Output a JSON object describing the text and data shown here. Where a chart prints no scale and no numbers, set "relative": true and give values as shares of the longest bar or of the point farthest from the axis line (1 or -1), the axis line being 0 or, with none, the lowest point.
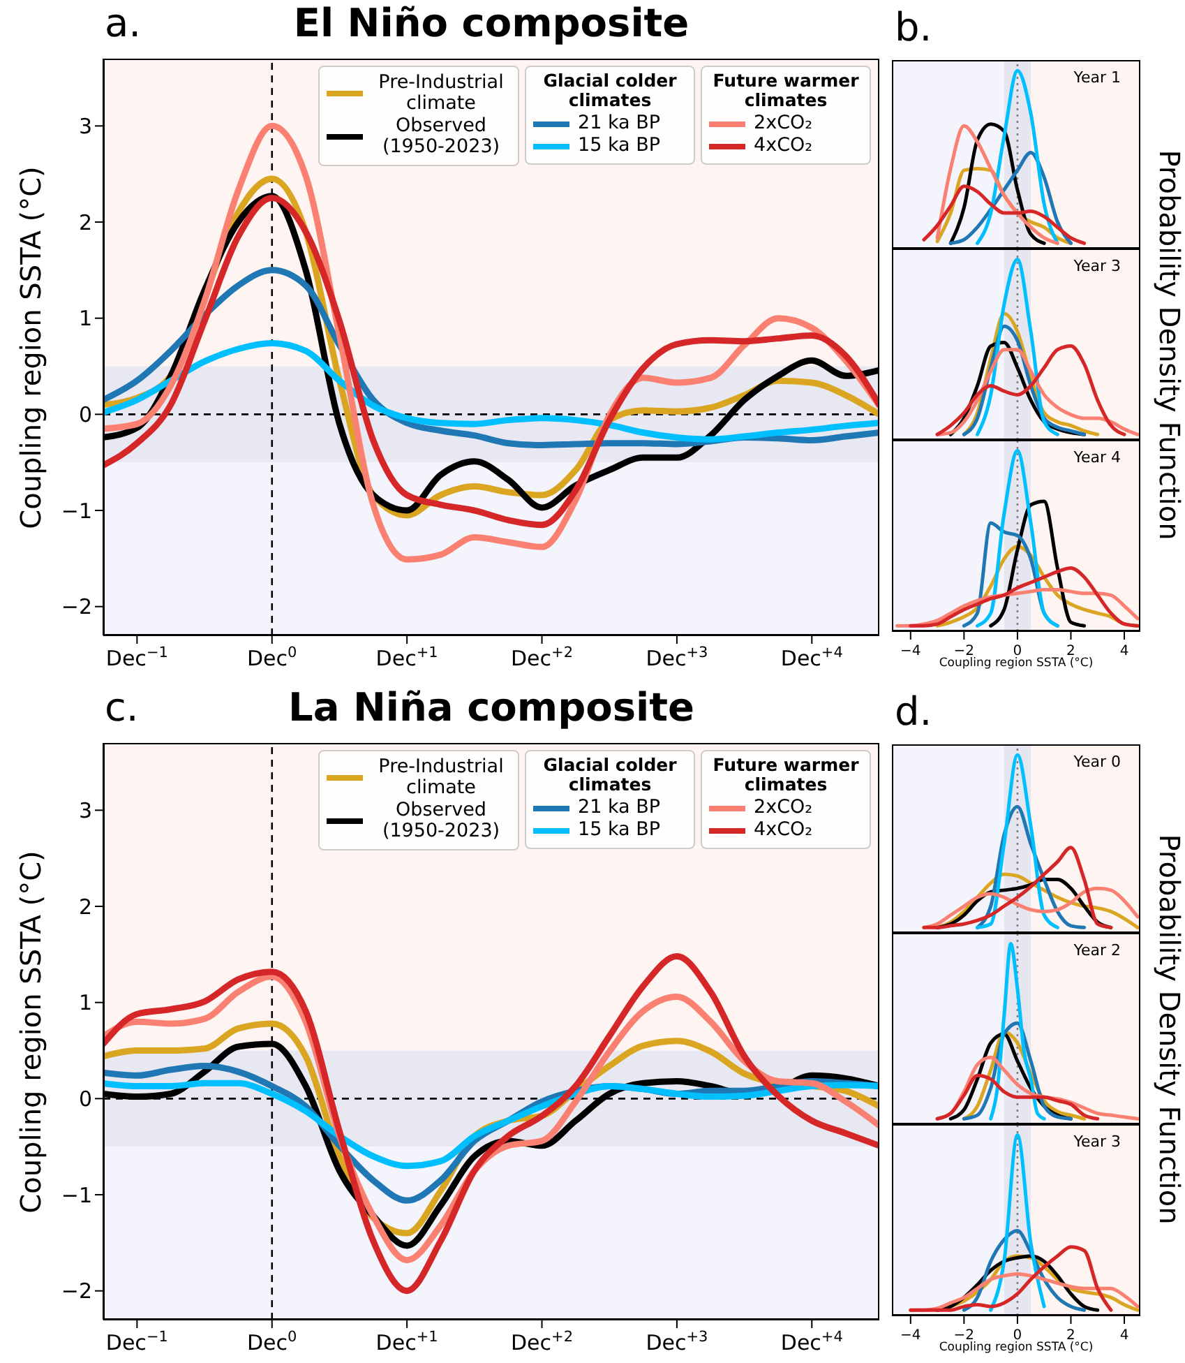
{
  "chart_data": [
    {
      "type": "line",
      "title": "El Niño composite",
      "annotations": [
        "a.",
        "Glacial colder climates",
        "Future warmer climates"
      ],
      "ylabel": "Coupling region SSTA (°C)",
      "legend": "top right",
      "categories": [
        null,
        "Dec$^{−1}$",
        null,
        null,
        null,
        "Dec$^{0}$",
        null,
        null,
        null,
        "Dec$^{+1}$",
        null,
        null,
        null,
        "Dec$^{+2}$",
        null,
        null,
        null,
        "Dec$^{+3}$",
        null,
        null,
        null,
        "Dec$^{+4}$",
        null,
        null
      ],
      "ylim": [
        -2.3,
        3.7
      ],
      "yticks": [
        -2,
        -1,
        0,
        1,
        2,
        3
      ],
      "bands": [
        {
          "axis": "y",
          "from": 0.5,
          "to": 3.7,
          "color": "#fef4f2"
        },
        {
          "axis": "y",
          "from": -0.5,
          "to": 0.5,
          "color": "#e8e8f2"
        },
        {
          "axis": "y",
          "from": -2.3,
          "to": -0.5,
          "color": "#f4f4fd"
        }
      ],
      "ref_lines": [
        {
          "axis": "y",
          "value": 0,
          "line_style": "dashed",
          "color": "#000000"
        },
        {
          "axis": "x",
          "value": "Dec$^{0}$",
          "line_style": "dashed",
          "color": "#000000"
        }
      ],
      "series": [
        {
          "name": "Pre-Industrial climate",
          "color": "#daa520",
          "values": [
            0.1,
            0.17,
            0.4,
            1.23,
            2.1,
            2.45,
            1.9,
            0.35,
            -0.84,
            -1.05,
            -0.84,
            -0.75,
            -0.81,
            -0.84,
            -0.58,
            -0.06,
            0.04,
            0.03,
            0.07,
            0.2,
            0.35,
            0.33,
            0.2,
            0.0
          ]
        },
        {
          "name": "Observed (1950-2023)",
          "color": "#000000",
          "values": [
            -0.24,
            -0.14,
            0.4,
            1.29,
            2.0,
            2.27,
            1.5,
            -0.1,
            -0.84,
            -1.0,
            -0.63,
            -0.49,
            -0.68,
            -0.97,
            -0.74,
            -0.58,
            -0.45,
            -0.45,
            -0.22,
            0.15,
            0.4,
            0.56,
            0.4,
            0.46
          ]
        },
        {
          "name": "21 ka BP",
          "color": "#1f77b4",
          "values": [
            0.15,
            0.35,
            0.66,
            1.03,
            1.34,
            1.5,
            1.34,
            0.72,
            0.15,
            -0.09,
            -0.17,
            -0.22,
            -0.3,
            -0.32,
            -0.31,
            -0.3,
            -0.3,
            -0.31,
            -0.28,
            -0.24,
            -0.25,
            -0.27,
            -0.23,
            -0.19
          ]
        },
        {
          "name": "15 ka BP",
          "color": "#00bfff",
          "values": [
            0.02,
            0.15,
            0.35,
            0.55,
            0.68,
            0.74,
            0.66,
            0.35,
            0.09,
            -0.04,
            -0.09,
            -0.1,
            -0.06,
            -0.04,
            -0.06,
            -0.11,
            -0.19,
            -0.24,
            -0.26,
            -0.23,
            -0.19,
            -0.16,
            -0.12,
            -0.09
          ]
        },
        {
          "name": "2xCO₂",
          "color": "#fa8072",
          "values": [
            -0.15,
            -0.1,
            0.3,
            1.18,
            2.33,
            3.0,
            2.48,
            0.82,
            -0.94,
            -1.51,
            -1.46,
            -1.28,
            -1.33,
            -1.38,
            -0.89,
            -0.01,
            0.38,
            0.33,
            0.38,
            0.72,
            1.0,
            0.9,
            0.56,
            0.09
          ]
        },
        {
          "name": "4xCO₂",
          "color": "#d62728",
          "values": [
            -0.53,
            -0.3,
            0.1,
            0.97,
            1.85,
            2.25,
            1.9,
            0.97,
            -0.27,
            -0.84,
            -0.94,
            -1.0,
            -1.1,
            -1.15,
            -0.79,
            -0.06,
            0.48,
            0.73,
            0.77,
            0.76,
            0.79,
            0.82,
            0.61,
            0.1
          ]
        }
      ]
    },
    {
      "type": "line",
      "title": "b.",
      "annotations": [
        "Year 1"
      ],
      "relative": true,
      "tick_labels": false,
      "x": [
        -3.5,
        -3,
        -2.5,
        -2,
        -1.5,
        -1,
        -0.5,
        0,
        0.5,
        1,
        1.5,
        2,
        2.5
      ],
      "xlim": [
        -4.7,
        4.6
      ],
      "bands": [
        {
          "axis": "x",
          "from": -4.7,
          "to": -0.5,
          "color": "#f4f4fd"
        },
        {
          "axis": "x",
          "from": -0.5,
          "to": 0.5,
          "color": "#e6e6f0"
        },
        {
          "axis": "x",
          "from": 0.5,
          "to": 4.6,
          "color": "#fef4f2"
        }
      ],
      "ref_lines": [
        {
          "axis": "x",
          "value": 0,
          "line_style": "dotted",
          "color": "#808080"
        }
      ],
      "series": [
        {
          "color": "#daa520",
          "values": [
            null,
            0.04,
            0.2,
            0.44,
            0.45,
            0.44,
            0.3,
            0.2,
            0.15,
            0.12,
            0.06,
            0.03,
            null
          ]
        },
        {
          "color": "#000000",
          "values": [
            null,
            null,
            0.03,
            0.23,
            0.61,
            0.7,
            0.66,
            0.33,
            0.08,
            0.03,
            null,
            null,
            null
          ]
        },
        {
          "color": "#1f77b4",
          "values": [
            null,
            null,
            0.03,
            0.05,
            0.12,
            0.22,
            0.33,
            0.44,
            0.54,
            0.4,
            0.15,
            0.03,
            null
          ]
        },
        {
          "color": "#00bfff",
          "values": [
            null,
            null,
            null,
            null,
            0.03,
            0.2,
            0.63,
            1,
            0.76,
            0.25,
            0.03,
            null,
            null
          ]
        },
        {
          "color": "#fa8072",
          "values": [
            null,
            0.06,
            0.45,
            0.69,
            0.6,
            0.45,
            0.3,
            0.2,
            0.12,
            0.06,
            0.03,
            null,
            null
          ]
        },
        {
          "color": "#d62728",
          "values": [
            0.05,
            0.13,
            0.24,
            0.35,
            0.32,
            0.25,
            0.2,
            0.2,
            0.21,
            0.18,
            0.12,
            0.06,
            0.03
          ]
        }
      ]
    },
    {
      "type": "line",
      "annotations": [
        "Year 3"
      ],
      "ylabel": "Probability Density Function",
      "relative": true,
      "tick_labels": false,
      "x": [
        -3,
        -2.5,
        -2,
        -1.5,
        -1,
        -0.5,
        0,
        0.5,
        1,
        1.5,
        2,
        2.5,
        3,
        3.5,
        4,
        4.5
      ],
      "xlim": [
        -4.7,
        4.6
      ],
      "bands": [
        {
          "axis": "x",
          "from": -4.7,
          "to": -0.5,
          "color": "#f4f4fd"
        },
        {
          "axis": "x",
          "from": -0.5,
          "to": 0.5,
          "color": "#e6e6f0"
        },
        {
          "axis": "x",
          "from": 0.5,
          "to": 4.6,
          "color": "#fef4f2"
        }
      ],
      "ref_lines": [
        {
          "axis": "x",
          "value": 0,
          "line_style": "dotted",
          "color": "#808080"
        }
      ],
      "series": [
        {
          "color": "#daa520",
          "values": [
            null,
            null,
            0.03,
            0.15,
            0.45,
            0.7,
            0.6,
            0.35,
            0.15,
            0.1,
            0.08,
            0.05,
            0.03,
            null,
            null,
            null
          ]
        },
        {
          "color": "#000000",
          "values": [
            null,
            0.03,
            0.12,
            0.3,
            0.52,
            0.54,
            0.4,
            0.22,
            0.1,
            0.06,
            0.04,
            0.03,
            null,
            null,
            null,
            null
          ]
        },
        {
          "color": "#1f77b4",
          "values": [
            null,
            null,
            0.03,
            0.12,
            0.4,
            0.63,
            0.55,
            0.3,
            0.12,
            0.07,
            0.05,
            0.03,
            null,
            null,
            null,
            null
          ]
        },
        {
          "color": "#00bfff",
          "values": [
            null,
            null,
            null,
            0.03,
            0.25,
            0.75,
            1,
            0.6,
            0.1,
            0.03,
            null,
            null,
            null,
            null,
            null,
            null
          ]
        },
        {
          "color": "#fa8072",
          "values": [
            0.03,
            0.04,
            0.1,
            0.22,
            0.38,
            0.5,
            0.5,
            0.38,
            0.25,
            0.18,
            0.14,
            0.12,
            0.12,
            0.1,
            0.06,
            0.03
          ]
        },
        {
          "color": "#d62728",
          "values": [
            0.03,
            0.08,
            0.15,
            0.25,
            0.3,
            0.27,
            0.25,
            0.3,
            0.4,
            0.5,
            0.52,
            0.42,
            0.22,
            0.08,
            0.03,
            null
          ]
        }
      ]
    },
    {
      "type": "line",
      "annotations": [
        "Year 4"
      ],
      "xlabel": "Coupling region SSTA (°C)",
      "relative": true,
      "tick_labels": "x",
      "x": [
        -4.5,
        -4,
        -3.5,
        -3,
        -2.5,
        -2,
        -1.5,
        -1,
        -0.5,
        0,
        0.5,
        1,
        1.5,
        2,
        2.5,
        3,
        3.5,
        4,
        4.5
      ],
      "xlim": [
        -4.7,
        4.6
      ],
      "xticks": [
        -4,
        -2,
        0,
        2,
        4
      ],
      "bands": [
        {
          "axis": "x",
          "from": -4.7,
          "to": -0.5,
          "color": "#f4f4fd"
        },
        {
          "axis": "x",
          "from": -0.5,
          "to": 0.5,
          "color": "#e6e6f0"
        },
        {
          "axis": "x",
          "from": 0.5,
          "to": 4.6,
          "color": "#fef4f2"
        }
      ],
      "ref_lines": [
        {
          "axis": "x",
          "value": 0,
          "line_style": "dotted",
          "color": "#808080"
        }
      ],
      "series": [
        {
          "color": "#daa520",
          "values": [
            null,
            null,
            null,
            0.03,
            0.05,
            0.08,
            0.13,
            0.25,
            0.4,
            0.47,
            0.42,
            0.3,
            0.2,
            0.15,
            0.12,
            0.1,
            0.08,
            0.04,
            0.03
          ]
        },
        {
          "color": "#000000",
          "values": [
            null,
            null,
            null,
            null,
            null,
            null,
            null,
            0.03,
            0.12,
            0.45,
            0.7,
            0.72,
            0.35,
            0.05,
            0.03,
            null,
            null,
            null,
            null
          ]
        },
        {
          "color": "#1f77b4",
          "values": [
            null,
            null,
            null,
            null,
            null,
            0.03,
            0.1,
            0.6,
            0.55,
            0.53,
            0.4,
            0.1,
            0.03,
            null,
            null,
            null,
            null,
            null,
            null
          ]
        },
        {
          "color": "#00bfff",
          "values": [
            null,
            null,
            null,
            null,
            null,
            null,
            0.03,
            0.1,
            0.65,
            1,
            0.6,
            0.1,
            0.03,
            null,
            null,
            null,
            null,
            null,
            null
          ]
        },
        {
          "color": "#fa8072",
          "values": [
            0.03,
            0.03,
            0.04,
            0.06,
            0.1,
            0.14,
            0.17,
            0.19,
            0.2,
            0.21,
            0.22,
            0.23,
            0.23,
            0.22,
            0.21,
            0.21,
            0.2,
            0.14,
            0.07
          ]
        },
        {
          "color": "#d62728",
          "values": [
            null,
            0.03,
            0.03,
            0.04,
            0.08,
            0.12,
            0.15,
            0.18,
            0.2,
            0.24,
            0.27,
            0.3,
            0.33,
            0.35,
            0.3,
            0.2,
            0.1,
            0.04,
            0.03
          ]
        }
      ]
    },
    {
      "type": "line",
      "title": "La Niña composite",
      "annotations": [
        "c.",
        "Glacial colder climates",
        "Future warmer climates"
      ],
      "ylabel": "Coupling region SSTA (°C)",
      "legend": "top right",
      "categories": [
        null,
        "Dec$^{−1}$",
        null,
        null,
        null,
        "Dec$^{0}$",
        null,
        null,
        null,
        "Dec$^{+1}$",
        null,
        null,
        null,
        "Dec$^{+2}$",
        null,
        null,
        null,
        "Dec$^{+3}$",
        null,
        null,
        null,
        "Dec$^{+4}$",
        null,
        null
      ],
      "ylim": [
        -2.3,
        3.7
      ],
      "yticks": [
        -2,
        -1,
        0,
        1,
        2,
        3
      ],
      "bands": [
        {
          "axis": "y",
          "from": 0.5,
          "to": 3.7,
          "color": "#fef4f2"
        },
        {
          "axis": "y",
          "from": -0.5,
          "to": 0.5,
          "color": "#e8e8f2"
        },
        {
          "axis": "y",
          "from": -2.3,
          "to": -0.5,
          "color": "#f4f4fd"
        }
      ],
      "ref_lines": [
        {
          "axis": "y",
          "value": 0,
          "line_style": "dashed",
          "color": "#000000"
        },
        {
          "axis": "x",
          "value": "Dec$^{0}$",
          "line_style": "dashed",
          "color": "#000000"
        }
      ],
      "series": [
        {
          "name": "Pre-Industrial climate",
          "color": "#daa520",
          "values": [
            0.44,
            0.5,
            0.5,
            0.52,
            0.73,
            0.78,
            0.44,
            -0.6,
            -1.24,
            -1.4,
            -0.96,
            -0.39,
            -0.23,
            -0.18,
            0.08,
            0.34,
            0.55,
            0.6,
            0.49,
            0.26,
            0.16,
            0.13,
            0.08,
            -0.08
          ]
        },
        {
          "name": "Observed (1950-2023)",
          "color": "#000000",
          "values": [
            0.05,
            0.02,
            0.05,
            0.28,
            0.54,
            0.57,
            0.13,
            -0.75,
            -1.22,
            -1.53,
            -1.11,
            -0.6,
            -0.44,
            -0.49,
            -0.23,
            0.05,
            0.16,
            0.18,
            0.13,
            0.05,
            0.1,
            0.24,
            0.21,
            0.13
          ]
        },
        {
          "name": "21 ka BP",
          "color": "#1f77b4",
          "values": [
            0.27,
            0.24,
            0.3,
            0.34,
            0.28,
            0.13,
            -0.08,
            -0.49,
            -0.85,
            -1.06,
            -0.85,
            -0.44,
            -0.23,
            -0.03,
            0.08,
            0.13,
            0.1,
            0.05,
            0.08,
            0.08,
            0.13,
            0.18,
            0.16,
            0.13
          ]
        },
        {
          "name": "15 ka BP",
          "color": "#00bfff",
          "values": [
            0.16,
            0.13,
            0.13,
            0.16,
            0.16,
            0.05,
            -0.13,
            -0.39,
            -0.6,
            -0.7,
            -0.65,
            -0.39,
            -0.23,
            -0.08,
            0.05,
            0.13,
            0.1,
            0.05,
            0.02,
            0.03,
            0.08,
            0.13,
            0.14,
            0.13
          ]
        },
        {
          "name": "2xCO₂",
          "color": "#fa8072",
          "values": [
            0.65,
            0.8,
            0.78,
            0.83,
            1.11,
            1.27,
            0.8,
            -0.39,
            -1.22,
            -1.68,
            -1.32,
            -0.75,
            -0.49,
            -0.44,
            -0.03,
            0.49,
            0.91,
            1.06,
            0.8,
            0.39,
            0.18,
            0.16,
            -0.03,
            -0.28
          ]
        },
        {
          "name": "4xCO₂",
          "color": "#d62728",
          "values": [
            0.57,
            0.88,
            0.93,
            1.01,
            1.24,
            1.32,
            0.91,
            -0.34,
            -1.48,
            -2.0,
            -1.48,
            -0.75,
            -0.39,
            -0.18,
            0.13,
            0.65,
            1.17,
            1.48,
            1.11,
            0.44,
            0.03,
            -0.23,
            -0.36,
            -0.49
          ]
        }
      ]
    },
    {
      "type": "line",
      "title": "d.",
      "annotations": [
        "Year 0"
      ],
      "relative": true,
      "tick_labels": false,
      "x": [
        -3.5,
        -3,
        -2.5,
        -2,
        -1.5,
        -1,
        -0.5,
        0,
        0.5,
        1,
        1.5,
        2,
        2.5,
        3,
        3.5,
        4,
        4.5
      ],
      "xlim": [
        -4.7,
        4.6
      ],
      "bands": [
        {
          "axis": "x",
          "from": -4.7,
          "to": -0.5,
          "color": "#f4f4fd"
        },
        {
          "axis": "x",
          "from": -0.5,
          "to": 0.5,
          "color": "#e6e6f0"
        },
        {
          "axis": "x",
          "from": 0.5,
          "to": 4.6,
          "color": "#fef4f2"
        }
      ],
      "ref_lines": [
        {
          "axis": "x",
          "value": 0,
          "line_style": "dotted",
          "color": "#808080"
        }
      ],
      "series": [
        {
          "color": "#daa520",
          "values": [
            null,
            0.03,
            0.06,
            0.12,
            0.2,
            0.28,
            0.33,
            0.32,
            0.28,
            0.24,
            0.2,
            0.17,
            0.15,
            0.14,
            0.12,
            0.08,
            0.03
          ]
        },
        {
          "color": "#000000",
          "values": [
            null,
            0.03,
            0.05,
            0.1,
            0.18,
            0.23,
            0.24,
            0.25,
            0.27,
            0.3,
            0.3,
            0.25,
            0.15,
            0.06,
            0.03,
            null,
            null
          ]
        },
        {
          "color": "#1f77b4",
          "values": [
            null,
            null,
            null,
            null,
            0.03,
            0.15,
            0.55,
            0.71,
            0.5,
            0.3,
            0.12,
            0.04,
            0.03,
            null,
            null,
            null,
            null
          ]
        },
        {
          "color": "#00bfff",
          "values": [
            null,
            null,
            null,
            null,
            0.03,
            0.05,
            0.5,
            1,
            0.6,
            0.1,
            0.03,
            null,
            null,
            null,
            null,
            null,
            null
          ]
        },
        {
          "color": "#fa8072",
          "values": [
            0.03,
            0.05,
            0.1,
            0.15,
            0.2,
            0.22,
            0.2,
            0.16,
            0.13,
            0.12,
            0.13,
            0.17,
            0.23,
            0.25,
            0.24,
            0.18,
            0.09
          ]
        },
        {
          "color": "#d62728",
          "values": [
            0.03,
            0.03,
            0.04,
            0.05,
            0.07,
            0.1,
            0.15,
            0.2,
            0.26,
            0.33,
            0.4,
            0.48,
            0.3,
            0.05,
            0.03,
            null,
            null
          ]
        }
      ]
    },
    {
      "type": "line",
      "annotations": [
        "Year 2"
      ],
      "ylabel": "Probability Density Function",
      "relative": true,
      "tick_labels": false,
      "x": [
        -3,
        -2.5,
        -2,
        -1.5,
        -1,
        -0.5,
        0,
        0.5,
        1,
        1.5,
        2,
        2.5,
        3,
        3.5,
        4,
        4.5
      ],
      "xlim": [
        -4.7,
        4.6
      ],
      "bands": [
        {
          "axis": "x",
          "from": -4.7,
          "to": -0.5,
          "color": "#f4f4fd"
        },
        {
          "axis": "x",
          "from": -0.5,
          "to": 0.5,
          "color": "#e6e6f0"
        },
        {
          "axis": "x",
          "from": 0.5,
          "to": 4.6,
          "color": "#fef4f2"
        }
      ],
      "ref_lines": [
        {
          "axis": "x",
          "value": 0,
          "line_style": "dotted",
          "color": "#808080"
        }
      ],
      "series": [
        {
          "color": "#daa520",
          "values": [
            null,
            null,
            0.03,
            0.1,
            0.3,
            0.51,
            0.45,
            0.28,
            0.13,
            0.07,
            0.05,
            0.03,
            null,
            null,
            null,
            null
          ]
        },
        {
          "color": "#000000",
          "values": [
            null,
            0.03,
            0.08,
            0.25,
            0.45,
            0.5,
            0.35,
            0.2,
            0.1,
            0.05,
            0.03,
            null,
            null,
            null,
            null,
            null
          ]
        },
        {
          "color": "#1f77b4",
          "values": [
            null,
            null,
            0.03,
            0.05,
            0.2,
            0.5,
            0.56,
            0.35,
            0.1,
            0.04,
            0.03,
            null,
            null,
            null,
            null,
            null
          ]
        },
        {
          "color": "#00bfff",
          "x": [
            -1,
            -0.75,
            -0.5,
            -0.25,
            0,
            0.25,
            0.5,
            0.75,
            1
          ],
          "values": [
            0.03,
            0.2,
            0.6,
            1,
            0.75,
            0.4,
            0.25,
            0.06,
            0.03
          ]
        },
        {
          "color": "#fa8072",
          "values": [
            0.03,
            0.06,
            0.18,
            0.33,
            0.37,
            0.3,
            0.22,
            0.17,
            0.15,
            0.14,
            0.12,
            0.09,
            0.06,
            0.05,
            0.04,
            0.03
          ]
        },
        {
          "color": "#d62728",
          "values": [
            0.03,
            0.06,
            0.16,
            0.27,
            0.25,
            0.18,
            0.15,
            0.15,
            0.15,
            0.13,
            0.11,
            0.05,
            0.03,
            null,
            null,
            null
          ]
        }
      ]
    },
    {
      "type": "line",
      "annotations": [
        "Year 3"
      ],
      "xlabel": "Coupling region SSTA (°C)",
      "relative": true,
      "tick_labels": "x",
      "x": [
        -4,
        -3.5,
        -3,
        -2.5,
        -2,
        -1.5,
        -1,
        -0.5,
        0,
        0.5,
        1,
        1.5,
        2,
        2.5,
        3,
        3.5,
        4,
        4.5
      ],
      "xlim": [
        -4.7,
        4.6
      ],
      "xticks": [
        -4,
        -2,
        0,
        2,
        4
      ],
      "bands": [
        {
          "axis": "x",
          "from": -4.7,
          "to": -0.5,
          "color": "#f4f4fd"
        },
        {
          "axis": "x",
          "from": -0.5,
          "to": 0.5,
          "color": "#e6e6f0"
        },
        {
          "axis": "x",
          "from": 0.5,
          "to": 4.6,
          "color": "#fef4f2"
        }
      ],
      "ref_lines": [
        {
          "axis": "x",
          "value": 0,
          "line_style": "dotted",
          "color": "#808080"
        }
      ],
      "series": [
        {
          "color": "#daa520",
          "values": [
            null,
            null,
            0.03,
            0.05,
            0.08,
            0.13,
            0.2,
            0.3,
            0.33,
            0.32,
            0.27,
            0.2,
            0.15,
            0.13,
            0.12,
            0.1,
            0.06,
            0.03
          ]
        },
        {
          "color": "#000000",
          "values": [
            null,
            null,
            0.03,
            0.05,
            0.1,
            0.17,
            0.25,
            0.3,
            0.32,
            0.33,
            0.3,
            0.22,
            0.12,
            0.05,
            0.03,
            null,
            null,
            null
          ]
        },
        {
          "color": "#1f77b4",
          "values": [
            null,
            null,
            null,
            null,
            0.03,
            0.1,
            0.3,
            0.42,
            0.47,
            0.35,
            0.2,
            0.1,
            0.05,
            0.03,
            null,
            null,
            null,
            null
          ]
        },
        {
          "color": "#00bfff",
          "values": [
            null,
            null,
            null,
            null,
            null,
            null,
            0.03,
            0.3,
            1,
            0.4,
            0.05,
            null,
            null,
            null,
            null,
            null,
            null,
            null
          ]
        },
        {
          "color": "#fa8072",
          "values": [
            0.03,
            0.03,
            0.04,
            0.07,
            0.1,
            0.15,
            0.2,
            0.22,
            0.23,
            0.22,
            0.2,
            0.18,
            0.16,
            0.15,
            0.15,
            0.15,
            0.11,
            0.05
          ]
        },
        {
          "color": "#d62728",
          "values": [
            0.03,
            0.03,
            0.03,
            0.03,
            0.05,
            0.06,
            0.05,
            0.07,
            0.12,
            0.2,
            0.27,
            0.33,
            0.38,
            0.36,
            0.15,
            0.03,
            null,
            null
          ]
        }
      ]
    }
  ]
}
